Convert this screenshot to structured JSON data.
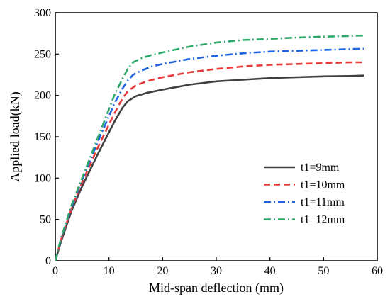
{
  "chart_data": {
    "type": "line",
    "xlabel": "Mid-span deflection (mm)",
    "ylabel": "Applied load(kN)",
    "xlim": [
      0,
      60
    ],
    "ylim": [
      0,
      300
    ],
    "xticks": [
      0,
      10,
      20,
      30,
      40,
      50,
      60
    ],
    "yticks": [
      0,
      50,
      100,
      150,
      200,
      250,
      300
    ],
    "grid": false,
    "legend_position": "lower-right",
    "series": [
      {
        "name": "t1=9mm",
        "color": "#404040",
        "dash": "solid",
        "x": [
          0,
          1,
          3,
          5,
          8,
          11,
          12.5,
          13.5,
          15,
          17,
          20,
          25,
          30,
          35,
          40,
          45,
          50,
          55,
          57.5
        ],
        "y": [
          0,
          22,
          60,
          90,
          130,
          168,
          185,
          193,
          199,
          203,
          207,
          213,
          217,
          219,
          221,
          222,
          223,
          223.5,
          224
        ]
      },
      {
        "name": "t1=10mm",
        "color": "#e83a3a",
        "dash": "dashed",
        "x": [
          0,
          1,
          3,
          5,
          8,
          11,
          12.5,
          13.5,
          15,
          17,
          20,
          25,
          30,
          35,
          40,
          45,
          50,
          55,
          57.5
        ],
        "y": [
          0,
          24,
          63,
          95,
          138,
          178,
          196,
          205,
          212,
          217,
          222,
          228,
          232,
          235,
          237,
          238,
          239,
          240,
          240
        ]
      },
      {
        "name": "t1=11mm",
        "color": "#1f63e0",
        "dash": "dashdot",
        "x": [
          0,
          1,
          3,
          5,
          8,
          11,
          12.5,
          13.5,
          14.5,
          16,
          18,
          20,
          25,
          30,
          35,
          40,
          45,
          50,
          55,
          57.5
        ],
        "y": [
          0,
          25,
          65,
          98,
          145,
          190,
          208,
          218,
          225,
          230,
          235,
          238,
          244,
          248,
          251,
          253,
          254,
          255,
          256,
          256.5
        ]
      },
      {
        "name": "t1=12mm",
        "color": "#2fa86a",
        "dash": "dashdot",
        "x": [
          0,
          1,
          3,
          5,
          8,
          11,
          12.5,
          13.5,
          14.5,
          16,
          18,
          20,
          25,
          30,
          35,
          40,
          45,
          50,
          55,
          57.5
        ],
        "y": [
          0,
          26,
          67,
          100,
          150,
          200,
          220,
          232,
          240,
          245,
          249,
          252,
          259,
          264,
          267,
          268.5,
          270,
          271,
          272,
          272.5
        ]
      }
    ]
  }
}
